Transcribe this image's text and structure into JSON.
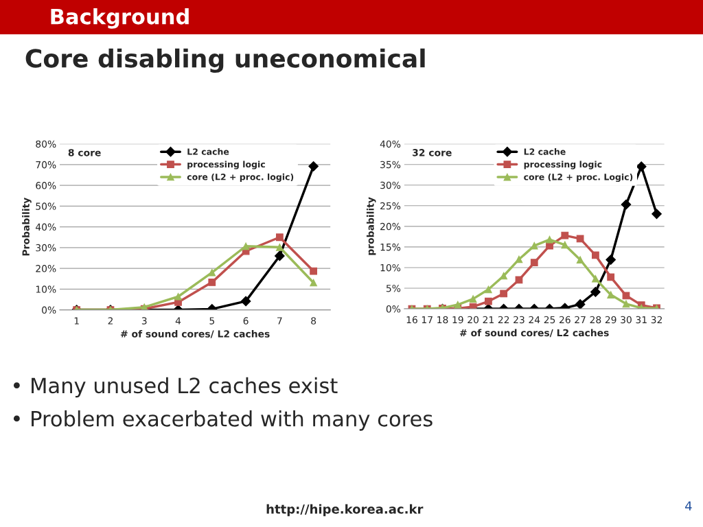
{
  "chart_data": [
    {
      "type": "line",
      "title": "Background",
      "subtitle": "Core disabling uneconomical",
      "xlabel": "# of sound cores/ L2 caches",
      "ylabel": "Probability",
      "categories": [
        "1",
        "2",
        "3",
        "4",
        "5",
        "6",
        "7",
        "8"
      ],
      "series": [
        {
          "name": "L2 cache",
          "color": "#000000",
          "marker": "diamond",
          "values": [
            0,
            0,
            0,
            0,
            0.4,
            4.2,
            26,
            69.2
          ]
        },
        {
          "name": "processing logic",
          "color": "#c0504d",
          "marker": "square",
          "values": [
            0,
            0,
            0.5,
            3.7,
            13.3,
            28.3,
            35,
            18.7
          ]
        },
        {
          "name": "core (L2 + proc. logic)",
          "color": "#9bbb59",
          "marker": "triangle",
          "values": [
            0,
            0,
            1.3,
            6.4,
            18,
            30.7,
            30.2,
            13.1
          ]
        }
      ],
      "ylim": [
        0,
        80
      ],
      "yticks": [
        {
          "value": 0,
          "label": "0%"
        },
        {
          "value": 10,
          "label": "10%"
        },
        {
          "value": 20,
          "label": "20%"
        },
        {
          "value": 30,
          "label": "30%"
        },
        {
          "value": 40,
          "label": "40%"
        },
        {
          "value": 50,
          "label": "50%"
        },
        {
          "value": 60,
          "label": "60%"
        },
        {
          "value": 70,
          "label": "70%"
        },
        {
          "value": 80,
          "label": "80%"
        }
      ],
      "grid": "y",
      "legend": "top",
      "annotations": [
        "8 core",
        "• Many unused L2 caches exist",
        "• Problem exacerbated with many cores",
        "http://hipe.korea.ac.kr",
        "4"
      ]
    },
    {
      "type": "line",
      "xlabel": "# of sound cores/ L2 caches",
      "ylabel": "probability",
      "categories": [
        "16",
        "17",
        "18",
        "19",
        "20",
        "21",
        "22",
        "23",
        "24",
        "25",
        "26",
        "27",
        "28",
        "29",
        "30",
        "31",
        "32"
      ],
      "series": [
        {
          "name": "L2 cache",
          "color": "#000000",
          "marker": "diamond",
          "values": [
            null,
            null,
            0,
            0,
            0,
            0,
            0,
            0,
            0,
            0,
            0.2,
            1.1,
            4.1,
            11.9,
            25.3,
            34.5,
            23
          ]
        },
        {
          "name": "processing logic",
          "color": "#c0504d",
          "marker": "square",
          "values": [
            0,
            0,
            0.1,
            0.1,
            0.5,
            1.8,
            3.7,
            7,
            11.2,
            15.3,
            17.8,
            17,
            13,
            7.7,
            3.2,
            0.9,
            0.2
          ]
        },
        {
          "name": "core (L2 + proc. Logic)",
          "color": "#9bbb59",
          "marker": "triangle",
          "values": [
            0,
            0,
            0.2,
            1,
            2.4,
            4.7,
            8,
            12,
            15.3,
            16.8,
            15.5,
            11.9,
            7.3,
            3.4,
            1.2,
            0.2,
            0.1
          ]
        }
      ],
      "ylim": [
        0,
        40
      ],
      "yticks": [
        {
          "value": 0,
          "label": "0%"
        },
        {
          "value": 5,
          "label": "5%"
        },
        {
          "value": 10,
          "label": "10%"
        },
        {
          "value": 15,
          "label": "15%"
        },
        {
          "value": 20,
          "label": "20%"
        },
        {
          "value": 25,
          "label": "25%"
        },
        {
          "value": 30,
          "label": "30%"
        },
        {
          "value": 35,
          "label": "35%"
        },
        {
          "value": 40,
          "label": "40%"
        }
      ],
      "grid": "y",
      "legend": "top",
      "annotations": [
        "32 core"
      ]
    }
  ]
}
